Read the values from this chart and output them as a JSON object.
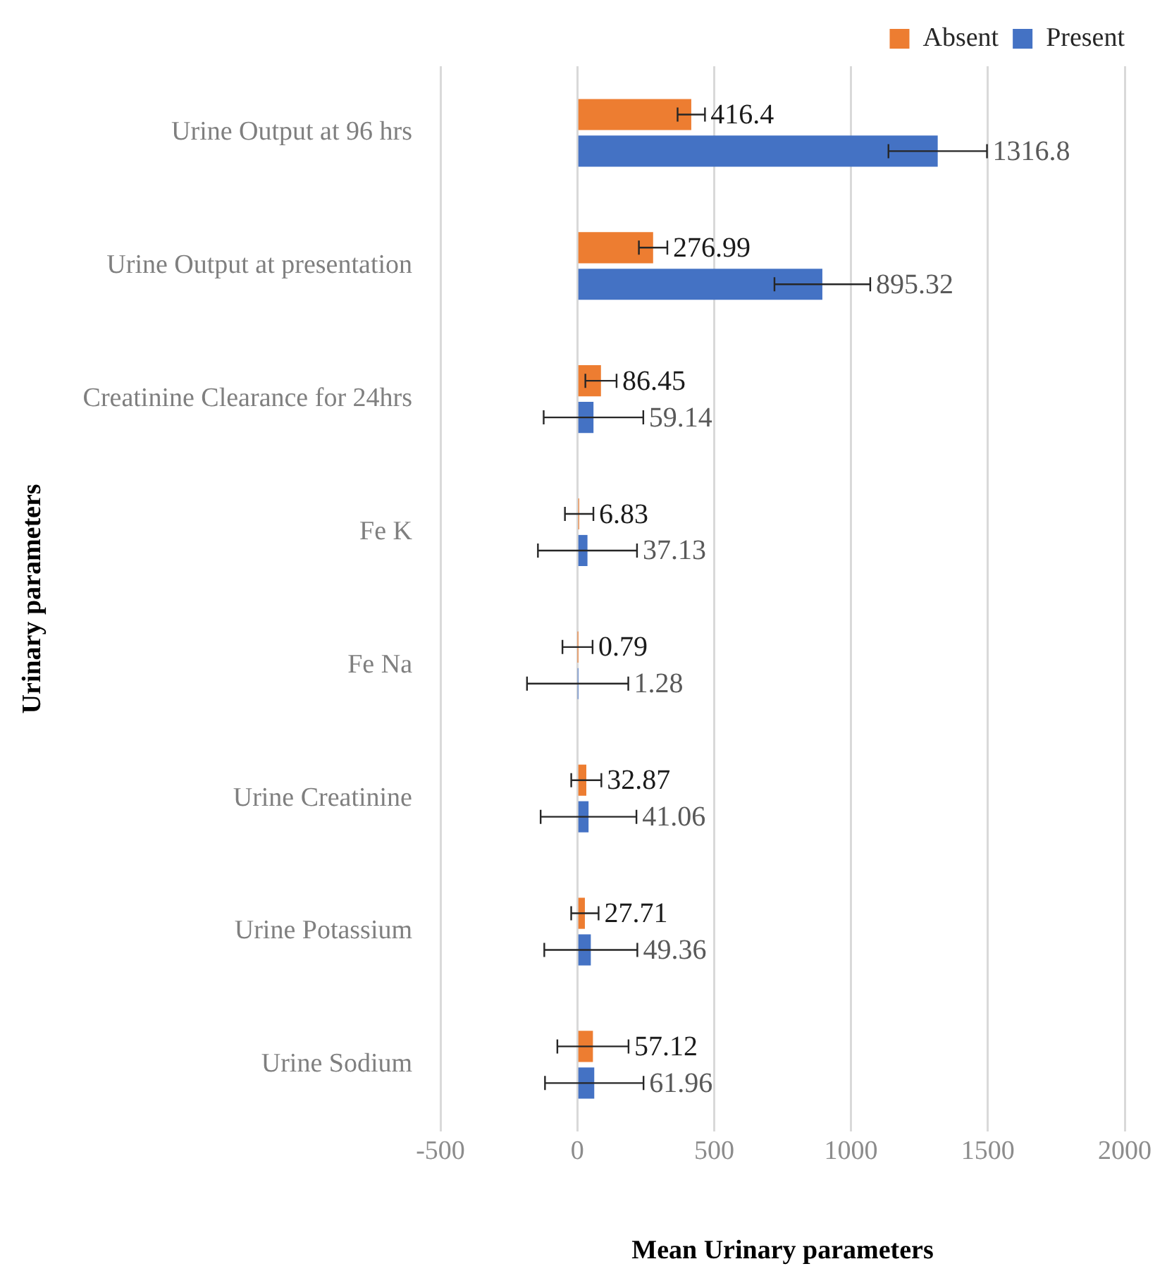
{
  "chart_data": {
    "type": "bar",
    "orientation": "horizontal",
    "xlabel": "Mean Urinary parameters",
    "ylabel": "Urinary parameters",
    "categories": [
      "Urine Output at 96 hrs",
      "Urine Output at presentation",
      "Creatinine Clearance for 24hrs",
      "Fe K",
      "Fe Na",
      "Urine Creatinine",
      "Urine Potassium",
      "Urine Sodium"
    ],
    "series": [
      {
        "name": "Absent",
        "color": "#ed7d31",
        "values": [
          416.4,
          276.99,
          86.45,
          6.83,
          0.79,
          32.87,
          27.71,
          57.12
        ],
        "errors": [
          50,
          52,
          57,
          52,
          55,
          55,
          50,
          130
        ]
      },
      {
        "name": "Present",
        "color": "#4472c4",
        "values": [
          1316.8,
          895.32,
          59.14,
          37.13,
          1.28,
          41.06,
          49.36,
          61.96
        ],
        "errors": [
          180,
          175,
          182,
          181,
          185,
          175,
          170,
          180
        ]
      }
    ],
    "xlim": [
      -500,
      2000
    ],
    "xticks": [
      -500,
      0,
      500,
      1000,
      1500,
      2000
    ],
    "grid": "x",
    "legend": "top right",
    "data_labels": true
  }
}
